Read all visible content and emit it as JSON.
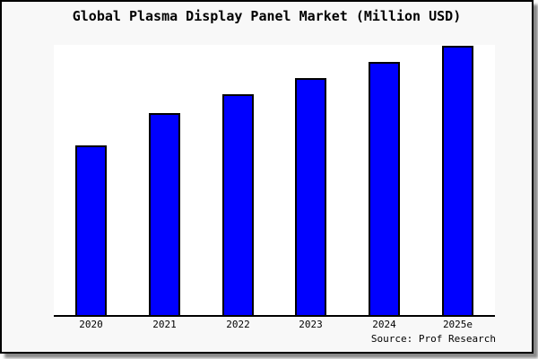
{
  "window": {
    "background_color": "#f8f8f8",
    "border_color": "#000000",
    "shadow_color": "#8a8a8a",
    "plot_background_color": "#ffffff"
  },
  "chart_data": {
    "type": "bar",
    "title": "Global Plasma Display Panel Market (Million USD)",
    "categories": [
      "2020",
      "2021",
      "2022",
      "2023",
      "2024",
      "2025e"
    ],
    "values": [
      63,
      75,
      82,
      88,
      94,
      100
    ],
    "ylim": [
      0,
      100
    ],
    "xlabel": "",
    "ylabel": "",
    "grid": false,
    "legend": "none",
    "bar_color": "#0000ff",
    "bar_border_color": "#000000",
    "source": "Source: Prof Research"
  }
}
